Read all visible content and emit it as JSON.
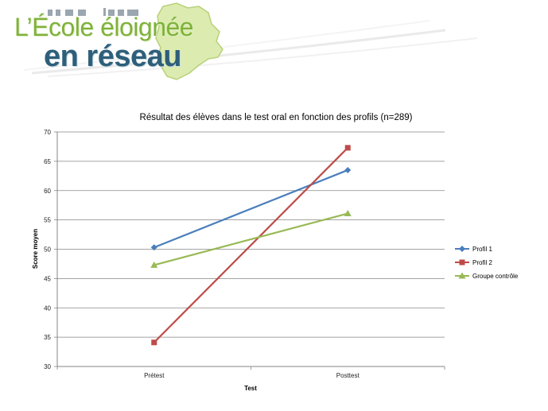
{
  "header": {
    "logo_line1": "L’École éloignée",
    "logo_line2": "en réseau"
  },
  "colors": {
    "logo_green": "#7fb23a",
    "logo_blue": "#2e5f7a",
    "map_green": "#dcecb0"
  },
  "chart_data": {
    "type": "line",
    "title": "Résultat des élèves dans le test oral en fonction des profils (n=289)",
    "xlabel": "Test",
    "ylabel": "Score moyen",
    "categories": [
      "Prétest",
      "Posttest"
    ],
    "ylim": [
      30,
      70
    ],
    "yticks": [
      30,
      35,
      40,
      45,
      50,
      55,
      60,
      65,
      70
    ],
    "grid": true,
    "legend_position": "right",
    "series": [
      {
        "name": "Profil 1",
        "values": [
          50.3,
          63.5
        ],
        "color": "#4a7ebb",
        "marker": "diamond"
      },
      {
        "name": "Profil 2",
        "values": [
          34.1,
          67.3
        ],
        "color": "#be4b48",
        "marker": "square"
      },
      {
        "name": "Groupe contrôle",
        "values": [
          47.3,
          56.1
        ],
        "color": "#98b954",
        "marker": "triangle"
      }
    ]
  }
}
